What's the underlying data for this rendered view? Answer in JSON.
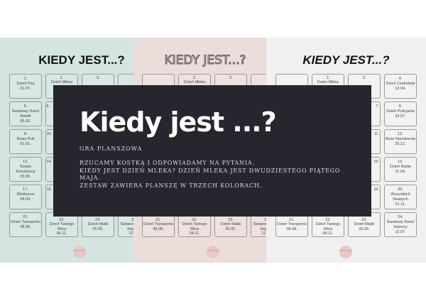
{
  "panel_title": "KIEDY JEST...?",
  "panel_colors": [
    "#d3e4e1",
    "#ecdcda",
    "#eff0ef"
  ],
  "logo_text": "tea share",
  "cells": [
    [
      "1.",
      "Dzień Psa",
      "01.07."
    ],
    [
      "2.",
      "Dzień Mleka",
      ""
    ],
    [
      "3.",
      "",
      ""
    ],
    [
      "4.",
      "Dzień Czekolady",
      "12.04."
    ],
    [
      "5.",
      "Światowy Dzień Nutelli",
      "05.02."
    ],
    [
      "6.",
      "",
      ""
    ],
    [
      "7.",
      "",
      ""
    ],
    [
      "8.",
      "Dzień Policjanta",
      "24.07."
    ],
    [
      "9.",
      "Nowy Rok",
      "01.01."
    ],
    [
      "10.",
      "",
      ""
    ],
    [
      "11.",
      "",
      ""
    ],
    [
      "12.",
      "Boże Narodzenie",
      "25.12."
    ],
    [
      "13.",
      "Święto Konstytucji",
      "03.05."
    ],
    [
      "14.",
      "",
      ""
    ],
    [
      "15.",
      "",
      ""
    ],
    [
      "16.",
      "Dzień Radia",
      "11.04."
    ],
    [
      "17.",
      "Wielkanoc",
      "04.04."
    ],
    [
      "18.",
      "",
      ""
    ],
    [
      "19.",
      "",
      ""
    ],
    [
      "20.",
      "Wszystkich Świętych",
      "01.11."
    ],
    [
      "21.",
      "Dzień Transportu",
      "08.08."
    ],
    [
      "22.",
      "Dzień Taniego Wina",
      "04.11."
    ],
    [
      "23.",
      "Dzień Matki",
      "26.05."
    ],
    [
      "24.",
      "Światowy Dzień Imprezy",
      "12.07."
    ]
  ],
  "overlay": {
    "title": "Kiedy jest ...?",
    "subtitle": "GRA PLANSZOWA",
    "lines": [
      "RZUCAMY KOSTKĄ I ODPOWIADAMY NA PYTANIA.",
      "KIEDY JEST DZIEŃ MLEKA? DZIEŃ MLEKA JEST DWUDZIESTEGO PIĄTEGO MAJA.",
      "ZESTAW ZAWIERA PLANSZĘ W TRZECH KOLORACH."
    ]
  }
}
